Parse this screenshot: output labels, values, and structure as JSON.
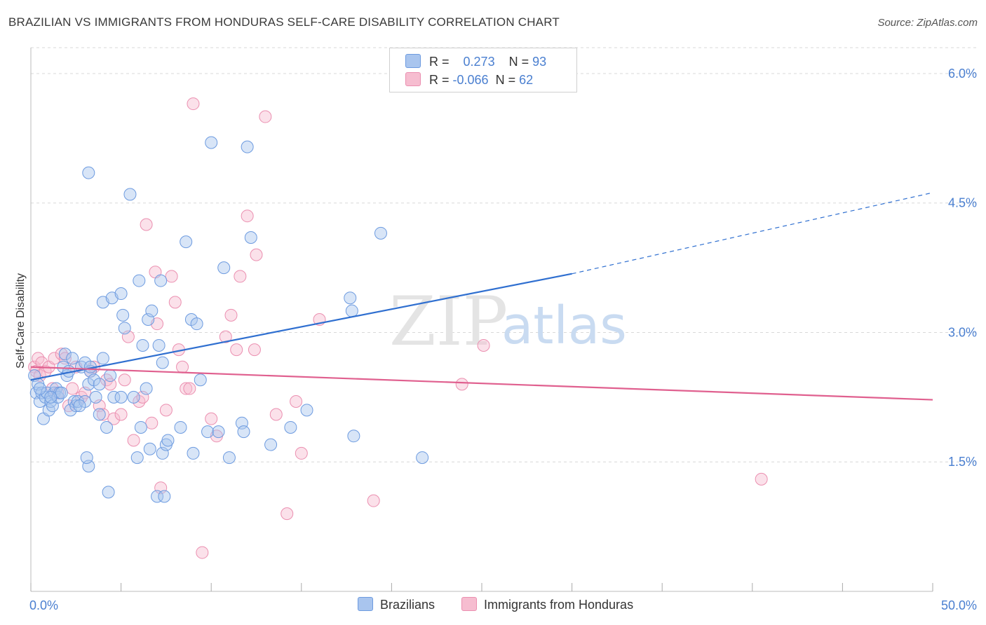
{
  "title": "BRAZILIAN VS IMMIGRANTS FROM HONDURAS SELF-CARE DISABILITY CORRELATION CHART",
  "source": "Source: ZipAtlas.com",
  "watermark": {
    "zip": "ZIP",
    "atlas": "atlas"
  },
  "legend": {
    "rows": [
      {
        "r_label": "R =",
        "r_value": "0.273",
        "n_label": "N =",
        "n_value": "93"
      },
      {
        "r_label": "R =",
        "r_value": "-0.066",
        "n_label": "N =",
        "n_value": "62"
      }
    ]
  },
  "bottom_legend": {
    "series1": "Brazilians",
    "series2": "Immigrants from Honduras"
  },
  "colors": {
    "blue_fill": "#a9c5ee",
    "blue_stroke": "#6d9be0",
    "blue_line": "#2f6fd0",
    "pink_fill": "#f6bdd0",
    "pink_stroke": "#eb8fb0",
    "pink_line": "#e0608f",
    "tick_text": "#4a7fd0",
    "grid": "#d8d8d8"
  },
  "chart_data": {
    "type": "scatter",
    "title": "BRAZILIAN VS IMMIGRANTS FROM HONDURAS SELF-CARE DISABILITY CORRELATION CHART",
    "xlabel": "",
    "ylabel": "Self-Care Disability",
    "xlim": [
      0,
      50
    ],
    "ylim": [
      0,
      6.3
    ],
    "x_tick_labels": [
      "0.0%",
      "50.0%"
    ],
    "y_ticks": [
      1.5,
      3.0,
      4.5,
      6.0
    ],
    "y_tick_labels": [
      "1.5%",
      "3.0%",
      "4.5%",
      "6.0%"
    ],
    "series": [
      {
        "name": "Brazilians",
        "r": 0.273,
        "n": 93,
        "trend": {
          "x0": 0,
          "y0": 2.45,
          "x1": 30,
          "y1": 3.68,
          "dash_x1": 50,
          "dash_y1": 4.62
        },
        "points": [
          [
            0.2,
            2.5
          ],
          [
            0.3,
            2.3
          ],
          [
            0.4,
            2.4
          ],
          [
            0.5,
            2.2
          ],
          [
            0.6,
            2.3
          ],
          [
            0.7,
            2.0
          ],
          [
            0.8,
            2.25
          ],
          [
            0.9,
            2.3
          ],
          [
            1.0,
            2.1
          ],
          [
            1.1,
            2.2
          ],
          [
            1.2,
            2.15
          ],
          [
            1.3,
            2.3
          ],
          [
            1.4,
            2.35
          ],
          [
            1.5,
            2.25
          ],
          [
            1.6,
            2.3
          ],
          [
            1.7,
            2.3
          ],
          [
            1.8,
            2.6
          ],
          [
            1.9,
            2.75
          ],
          [
            2.0,
            2.5
          ],
          [
            2.1,
            2.55
          ],
          [
            2.2,
            2.1
          ],
          [
            2.3,
            2.7
          ],
          [
            2.4,
            2.2
          ],
          [
            2.5,
            2.15
          ],
          [
            2.6,
            2.2
          ],
          [
            2.8,
            2.6
          ],
          [
            3.0,
            2.65
          ],
          [
            3.0,
            2.2
          ],
          [
            3.2,
            2.4
          ],
          [
            3.3,
            2.55
          ],
          [
            3.5,
            2.45
          ],
          [
            3.6,
            2.25
          ],
          [
            3.8,
            2.05
          ],
          [
            4.0,
            2.7
          ],
          [
            4.0,
            3.35
          ],
          [
            4.2,
            1.9
          ],
          [
            4.4,
            2.5
          ],
          [
            4.5,
            3.4
          ],
          [
            4.6,
            2.25
          ],
          [
            3.3,
            2.6
          ],
          [
            3.8,
            2.4
          ],
          [
            5.0,
            3.45
          ],
          [
            5.1,
            3.2
          ],
          [
            5.2,
            3.05
          ],
          [
            5.5,
            4.6
          ],
          [
            5.7,
            2.25
          ],
          [
            5.9,
            1.55
          ],
          [
            6.1,
            1.9
          ],
          [
            6.0,
            3.6
          ],
          [
            6.2,
            2.85
          ],
          [
            6.4,
            2.35
          ],
          [
            6.5,
            3.15
          ],
          [
            6.6,
            1.65
          ],
          [
            6.7,
            3.25
          ],
          [
            7.0,
            1.1
          ],
          [
            7.1,
            2.85
          ],
          [
            7.3,
            2.65
          ],
          [
            7.3,
            1.6
          ],
          [
            7.5,
            1.7
          ],
          [
            7.6,
            1.75
          ],
          [
            7.2,
            3.6
          ],
          [
            8.3,
            1.9
          ],
          [
            8.6,
            4.05
          ],
          [
            8.9,
            3.15
          ],
          [
            9.0,
            1.6
          ],
          [
            9.2,
            3.1
          ],
          [
            9.4,
            2.45
          ],
          [
            9.8,
            1.85
          ],
          [
            10.4,
            1.85
          ],
          [
            10.7,
            3.75
          ],
          [
            11.0,
            1.55
          ],
          [
            10.0,
            5.2
          ],
          [
            11.7,
            1.95
          ],
          [
            11.8,
            1.85
          ],
          [
            12.0,
            5.15
          ],
          [
            12.2,
            4.1
          ],
          [
            13.3,
            1.7
          ],
          [
            14.4,
            1.9
          ],
          [
            15.3,
            2.1
          ],
          [
            17.7,
            3.4
          ],
          [
            17.8,
            3.25
          ],
          [
            17.9,
            1.8
          ],
          [
            19.4,
            4.15
          ],
          [
            21.7,
            1.55
          ],
          [
            3.2,
            4.85
          ],
          [
            5.0,
            2.25
          ],
          [
            3.2,
            1.45
          ],
          [
            3.1,
            1.55
          ],
          [
            4.3,
            1.15
          ],
          [
            7.4,
            1.1
          ],
          [
            0.5,
            2.35
          ],
          [
            1.1,
            2.25
          ],
          [
            2.7,
            2.15
          ]
        ]
      },
      {
        "name": "Immigrants from Honduras",
        "r": -0.066,
        "n": 62,
        "trend": {
          "x0": 0,
          "y0": 2.6,
          "x1": 50,
          "y1": 2.22
        },
        "points": [
          [
            0.2,
            2.6
          ],
          [
            0.3,
            2.55
          ],
          [
            0.4,
            2.7
          ],
          [
            0.5,
            2.5
          ],
          [
            0.6,
            2.65
          ],
          [
            0.8,
            2.55
          ],
          [
            1.0,
            2.6
          ],
          [
            1.2,
            2.35
          ],
          [
            1.3,
            2.7
          ],
          [
            1.5,
            2.3
          ],
          [
            1.7,
            2.75
          ],
          [
            1.9,
            2.7
          ],
          [
            2.1,
            2.15
          ],
          [
            2.3,
            2.35
          ],
          [
            2.5,
            2.6
          ],
          [
            2.8,
            2.25
          ],
          [
            3.0,
            2.3
          ],
          [
            3.3,
            2.55
          ],
          [
            3.5,
            2.6
          ],
          [
            3.8,
            2.15
          ],
          [
            4.0,
            2.05
          ],
          [
            4.2,
            2.45
          ],
          [
            4.4,
            2.4
          ],
          [
            4.6,
            2.0
          ],
          [
            5.0,
            2.05
          ],
          [
            5.2,
            2.45
          ],
          [
            5.4,
            2.95
          ],
          [
            5.7,
            1.75
          ],
          [
            6.0,
            2.2
          ],
          [
            6.2,
            2.25
          ],
          [
            6.4,
            4.25
          ],
          [
            6.7,
            1.95
          ],
          [
            6.9,
            3.7
          ],
          [
            7.0,
            3.1
          ],
          [
            7.2,
            1.2
          ],
          [
            7.5,
            2.1
          ],
          [
            7.8,
            3.65
          ],
          [
            8.0,
            3.35
          ],
          [
            8.2,
            2.8
          ],
          [
            8.4,
            2.6
          ],
          [
            8.6,
            2.35
          ],
          [
            8.8,
            2.35
          ],
          [
            9.0,
            5.65
          ],
          [
            9.5,
            0.45
          ],
          [
            10.0,
            2.0
          ],
          [
            10.3,
            1.8
          ],
          [
            10.8,
            2.95
          ],
          [
            11.1,
            3.2
          ],
          [
            11.4,
            2.8
          ],
          [
            11.6,
            3.65
          ],
          [
            12.0,
            4.35
          ],
          [
            12.4,
            2.8
          ],
          [
            12.5,
            3.9
          ],
          [
            13.0,
            5.5
          ],
          [
            13.6,
            2.05
          ],
          [
            14.2,
            0.9
          ],
          [
            14.7,
            2.2
          ],
          [
            15.0,
            1.6
          ],
          [
            16.0,
            3.15
          ],
          [
            19.0,
            1.05
          ],
          [
            23.9,
            2.4
          ],
          [
            25.1,
            2.85
          ]
        ]
      }
    ],
    "extra_points": [
      [
        40.5,
        1.3
      ]
    ]
  }
}
